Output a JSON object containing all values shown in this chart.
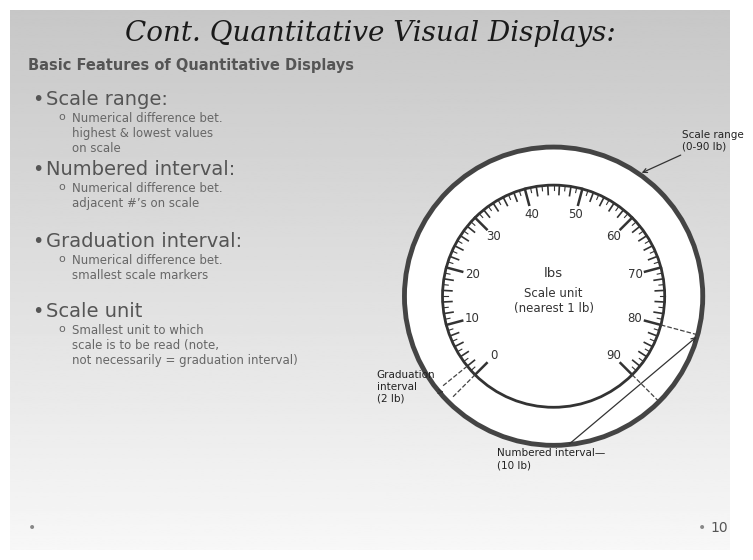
{
  "title": "Cont. Quantitative Visual Displays:",
  "subtitle": "Basic Features of Quantitative Displays",
  "bullets": [
    {
      "main": "Scale range:",
      "sub": "Numerical difference bet.\nhighest & lowest values\non scale"
    },
    {
      "main": "Numbered interval:",
      "sub": "Numerical difference bet.\nadjacent #’s on scale"
    },
    {
      "main": "Graduation interval:",
      "sub": "Numerical difference bet.\nsmallest scale markers"
    },
    {
      "main": "Scale unit",
      "sub": "Smallest unit to which\nscale is to be read (note,\nnot necessarily = graduation interval)"
    }
  ],
  "slide_number": "10",
  "title_color": "#1a1a1a",
  "subtitle_color": "#555555",
  "bullet_main_color": "#555555",
  "bullet_sub_color": "#666666",
  "gauge_labels": [
    "0",
    "10",
    "20",
    "30",
    "40",
    "50",
    "60",
    "70",
    "80",
    "90"
  ],
  "gauge_center_text1": "lbs",
  "gauge_center_text2": "Scale unit\n(nearest 1 lb)",
  "gauge_annotation_scale_range": "Scale range\n(0-90 lb)",
  "gauge_annotation_grad": "Graduation\ninterval\n(2 lb)",
  "gauge_annotation_numbered": "Numbered interval—\n(10 lb)"
}
